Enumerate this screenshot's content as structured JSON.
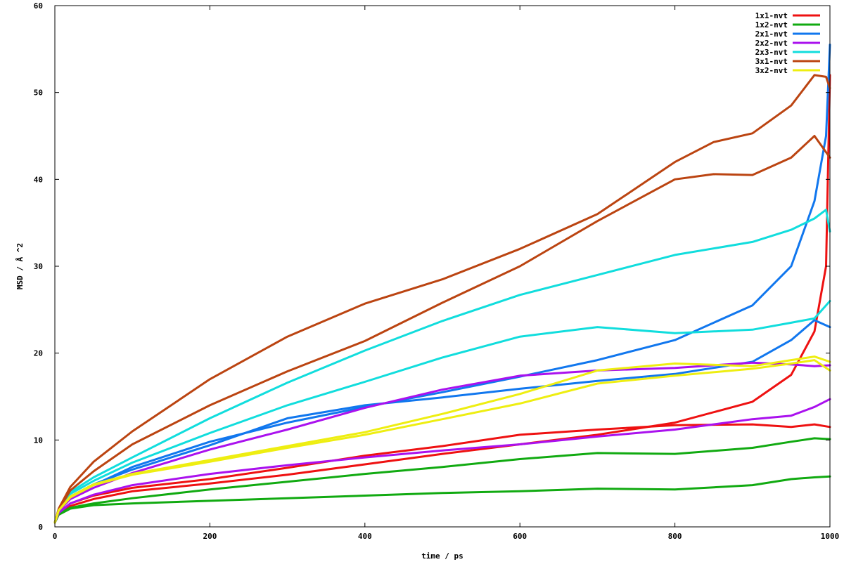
{
  "chart_data": {
    "type": "line",
    "title": "",
    "xlabel": "time / ps",
    "ylabel": "MSD / Å ^2",
    "xlim": [
      0,
      1000
    ],
    "ylim": [
      0,
      60
    ],
    "xticks": [
      0,
      200,
      400,
      600,
      800,
      1000
    ],
    "yticks": [
      0,
      10,
      20,
      30,
      40,
      50,
      60
    ],
    "grid": false,
    "legend_position": "top-right",
    "series": [
      {
        "name": "1x1-nvt",
        "color": "#ee1111",
        "curves": [
          [
            [
              0,
              0.5
            ],
            [
              5,
              1.5
            ],
            [
              20,
              2.4
            ],
            [
              50,
              3.2
            ],
            [
              100,
              4.1
            ],
            [
              200,
              5.0
            ],
            [
              300,
              6.0
            ],
            [
              400,
              7.2
            ],
            [
              500,
              8.4
            ],
            [
              600,
              9.5
            ],
            [
              700,
              10.6
            ],
            [
              800,
              12.0
            ],
            [
              900,
              14.4
            ],
            [
              950,
              17.5
            ],
            [
              980,
              22.5
            ],
            [
              995,
              30
            ],
            [
              1000,
              52
            ]
          ],
          [
            [
              0,
              0.5
            ],
            [
              5,
              1.6
            ],
            [
              20,
              2.7
            ],
            [
              50,
              3.6
            ],
            [
              100,
              4.5
            ],
            [
              200,
              5.5
            ],
            [
              300,
              6.8
            ],
            [
              400,
              8.2
            ],
            [
              500,
              9.3
            ],
            [
              600,
              10.6
            ],
            [
              700,
              11.2
            ],
            [
              800,
              11.7
            ],
            [
              900,
              11.8
            ],
            [
              950,
              11.5
            ],
            [
              980,
              11.8
            ],
            [
              1000,
              11.5
            ]
          ]
        ]
      },
      {
        "name": "1x2-nvt",
        "color": "#11aa11",
        "curves": [
          [
            [
              0,
              0.5
            ],
            [
              5,
              1.4
            ],
            [
              20,
              2.1
            ],
            [
              50,
              2.5
            ],
            [
              100,
              2.7
            ],
            [
              200,
              3.0
            ],
            [
              300,
              3.3
            ],
            [
              400,
              3.6
            ],
            [
              500,
              3.9
            ],
            [
              600,
              4.1
            ],
            [
              700,
              4.4
            ],
            [
              800,
              4.3
            ],
            [
              900,
              4.8
            ],
            [
              950,
              5.5
            ],
            [
              980,
              5.7
            ],
            [
              1000,
              5.8
            ]
          ],
          [
            [
              0,
              0.5
            ],
            [
              5,
              1.5
            ],
            [
              20,
              2.2
            ],
            [
              50,
              2.7
            ],
            [
              100,
              3.3
            ],
            [
              200,
              4.3
            ],
            [
              300,
              5.2
            ],
            [
              400,
              6.1
            ],
            [
              500,
              6.9
            ],
            [
              600,
              7.8
            ],
            [
              700,
              8.5
            ],
            [
              800,
              8.4
            ],
            [
              900,
              9.1
            ],
            [
              950,
              9.8
            ],
            [
              980,
              10.2
            ],
            [
              1000,
              10.1
            ]
          ]
        ]
      },
      {
        "name": "2x1-nvt",
        "color": "#1177ee",
        "curves": [
          [
            [
              0,
              0.5
            ],
            [
              5,
              1.8
            ],
            [
              20,
              3.5
            ],
            [
              50,
              4.9
            ],
            [
              100,
              6.6
            ],
            [
              200,
              9.4
            ],
            [
              300,
              12.5
            ],
            [
              400,
              14.0
            ],
            [
              500,
              14.9
            ],
            [
              600,
              15.9
            ],
            [
              700,
              16.8
            ],
            [
              800,
              17.6
            ],
            [
              900,
              19.0
            ],
            [
              950,
              21.5
            ],
            [
              980,
              23.8
            ],
            [
              1000,
              23.0
            ]
          ],
          [
            [
              0,
              0.5
            ],
            [
              5,
              1.8
            ],
            [
              20,
              3.4
            ],
            [
              50,
              4.8
            ],
            [
              100,
              6.9
            ],
            [
              200,
              9.8
            ],
            [
              300,
              12.0
            ],
            [
              400,
              13.8
            ],
            [
              500,
              15.5
            ],
            [
              600,
              17.3
            ],
            [
              700,
              19.2
            ],
            [
              800,
              21.5
            ],
            [
              900,
              25.5
            ],
            [
              950,
              30.0
            ],
            [
              980,
              37.5
            ],
            [
              995,
              45
            ],
            [
              1000,
              55.5
            ]
          ]
        ]
      },
      {
        "name": "2x2-nvt",
        "color": "#aa11ee",
        "curves": [
          [
            [
              0,
              0.5
            ],
            [
              5,
              1.6
            ],
            [
              20,
              2.7
            ],
            [
              50,
              3.7
            ],
            [
              100,
              4.8
            ],
            [
              200,
              6.1
            ],
            [
              300,
              7.1
            ],
            [
              400,
              8.0
            ],
            [
              500,
              8.8
            ],
            [
              600,
              9.5
            ],
            [
              700,
              10.4
            ],
            [
              800,
              11.2
            ],
            [
              900,
              12.4
            ],
            [
              950,
              12.8
            ],
            [
              980,
              13.8
            ],
            [
              1000,
              14.7
            ]
          ],
          [
            [
              0,
              0.5
            ],
            [
              5,
              1.8
            ],
            [
              20,
              3.2
            ],
            [
              50,
              4.5
            ],
            [
              100,
              6.2
            ],
            [
              200,
              8.9
            ],
            [
              300,
              11.2
            ],
            [
              400,
              13.7
            ],
            [
              500,
              15.8
            ],
            [
              600,
              17.4
            ],
            [
              700,
              18.0
            ],
            [
              800,
              18.3
            ],
            [
              900,
              18.9
            ],
            [
              950,
              18.7
            ],
            [
              980,
              18.5
            ],
            [
              1000,
              18.6
            ]
          ]
        ]
      },
      {
        "name": "2x3-nvt",
        "color": "#11dddd",
        "curves": [
          [
            [
              0,
              0.5
            ],
            [
              5,
              1.9
            ],
            [
              20,
              3.8
            ],
            [
              50,
              5.3
            ],
            [
              100,
              7.4
            ],
            [
              200,
              10.8
            ],
            [
              300,
              14.0
            ],
            [
              400,
              16.7
            ],
            [
              500,
              19.5
            ],
            [
              600,
              21.9
            ],
            [
              700,
              23.0
            ],
            [
              800,
              22.3
            ],
            [
              900,
              22.7
            ],
            [
              950,
              23.5
            ],
            [
              980,
              24.0
            ],
            [
              1000,
              26.0
            ]
          ],
          [
            [
              0,
              0.5
            ],
            [
              5,
              2.0
            ],
            [
              20,
              4.0
            ],
            [
              50,
              5.7
            ],
            [
              100,
              8.0
            ],
            [
              200,
              12.5
            ],
            [
              300,
              16.6
            ],
            [
              400,
              20.3
            ],
            [
              500,
              23.7
            ],
            [
              600,
              26.7
            ],
            [
              700,
              29.0
            ],
            [
              800,
              31.3
            ],
            [
              900,
              32.8
            ],
            [
              950,
              34.2
            ],
            [
              980,
              35.5
            ],
            [
              995,
              36.5
            ],
            [
              1000,
              34.0
            ]
          ]
        ]
      },
      {
        "name": "3x1-nvt",
        "color": "#bb4411",
        "curves": [
          [
            [
              0,
              0.5
            ],
            [
              5,
              2.0
            ],
            [
              20,
              4.2
            ],
            [
              50,
              6.4
            ],
            [
              100,
              9.5
            ],
            [
              200,
              14.0
            ],
            [
              300,
              17.9
            ],
            [
              400,
              21.4
            ],
            [
              500,
              25.8
            ],
            [
              600,
              30.0
            ],
            [
              700,
              35.2
            ],
            [
              800,
              40.0
            ],
            [
              850,
              40.6
            ],
            [
              900,
              40.5
            ],
            [
              950,
              42.5
            ],
            [
              980,
              45.0
            ],
            [
              1000,
              42.5
            ]
          ],
          [
            [
              0,
              0.5
            ],
            [
              5,
              2.1
            ],
            [
              20,
              4.6
            ],
            [
              50,
              7.5
            ],
            [
              100,
              11.0
            ],
            [
              200,
              17.0
            ],
            [
              300,
              21.9
            ],
            [
              400,
              25.7
            ],
            [
              500,
              28.5
            ],
            [
              600,
              32.0
            ],
            [
              700,
              36.0
            ],
            [
              800,
              42.0
            ],
            [
              850,
              44.3
            ],
            [
              900,
              45.3
            ],
            [
              950,
              48.5
            ],
            [
              980,
              52.0
            ],
            [
              995,
              51.8
            ],
            [
              1000,
              50.5
            ]
          ]
        ]
      },
      {
        "name": "3x2-nvt",
        "color": "#eeee11",
        "curves": [
          [
            [
              0,
              0.5
            ],
            [
              5,
              1.9
            ],
            [
              20,
              3.4
            ],
            [
              50,
              4.8
            ],
            [
              100,
              6.0
            ],
            [
              200,
              7.5
            ],
            [
              300,
              9.1
            ],
            [
              400,
              10.6
            ],
            [
              500,
              12.4
            ],
            [
              600,
              14.2
            ],
            [
              700,
              16.5
            ],
            [
              800,
              17.4
            ],
            [
              900,
              18.2
            ],
            [
              950,
              18.8
            ],
            [
              980,
              19.2
            ],
            [
              1000,
              18.0
            ]
          ],
          [
            [
              0,
              0.5
            ],
            [
              5,
              1.9
            ],
            [
              20,
              3.5
            ],
            [
              50,
              4.9
            ],
            [
              100,
              6.1
            ],
            [
              200,
              7.7
            ],
            [
              300,
              9.3
            ],
            [
              400,
              10.9
            ],
            [
              500,
              13.0
            ],
            [
              600,
              15.3
            ],
            [
              700,
              18.0
            ],
            [
              800,
              18.8
            ],
            [
              900,
              18.5
            ],
            [
              950,
              19.2
            ],
            [
              980,
              19.6
            ],
            [
              1000,
              19.0
            ]
          ]
        ]
      }
    ]
  }
}
